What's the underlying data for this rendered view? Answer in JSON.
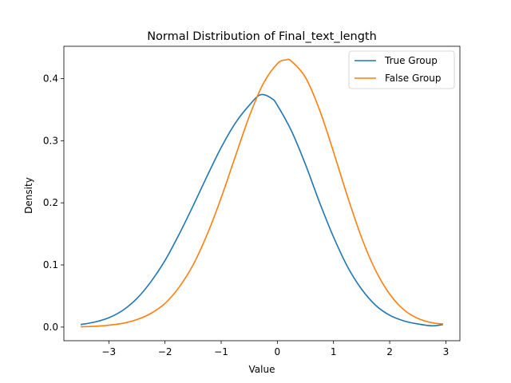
{
  "chart_data": {
    "type": "line",
    "title": "Normal Distribution of Final_text_length",
    "xlabel": "Value",
    "ylabel": "Density",
    "xlim": [
      -3.8,
      3.25
    ],
    "ylim": [
      -0.022,
      0.452
    ],
    "xticks": [
      -3,
      -2,
      -1,
      0,
      1,
      2,
      3
    ],
    "xtick_labels": [
      "−3",
      "−2",
      "−1",
      "0",
      "1",
      "2",
      "3"
    ],
    "yticks": [
      0.0,
      0.1,
      0.2,
      0.3,
      0.4
    ],
    "ytick_labels": [
      "0.0",
      "0.1",
      "0.2",
      "0.3",
      "0.4"
    ],
    "grid": false,
    "legend_position": "top-right",
    "series": [
      {
        "name": "True Group",
        "color": "#1f77b4",
        "x": [
          -3.5,
          -3.25,
          -3.0,
          -2.75,
          -2.5,
          -2.25,
          -2.0,
          -1.75,
          -1.5,
          -1.25,
          -1.0,
          -0.75,
          -0.5,
          -0.3,
          -0.1,
          0.0,
          0.25,
          0.5,
          0.75,
          1.0,
          1.25,
          1.5,
          1.75,
          2.0,
          2.25,
          2.5,
          2.75,
          2.95
        ],
        "y": [
          0.004,
          0.008,
          0.015,
          0.027,
          0.046,
          0.073,
          0.107,
          0.149,
          0.195,
          0.243,
          0.289,
          0.328,
          0.357,
          0.374,
          0.368,
          0.357,
          0.316,
          0.262,
          0.201,
          0.145,
          0.097,
          0.061,
          0.035,
          0.019,
          0.01,
          0.005,
          0.002,
          0.004
        ]
      },
      {
        "name": "False Group",
        "color": "#ff7f0e",
        "x": [
          -3.5,
          -3.25,
          -3.0,
          -2.75,
          -2.5,
          -2.25,
          -2.0,
          -1.75,
          -1.5,
          -1.25,
          -1.0,
          -0.75,
          -0.5,
          -0.25,
          0.0,
          0.15,
          0.25,
          0.5,
          0.75,
          1.0,
          1.25,
          1.5,
          1.75,
          2.0,
          2.25,
          2.5,
          2.75,
          2.95
        ],
        "y": [
          0.0005,
          0.0012,
          0.003,
          0.006,
          0.012,
          0.022,
          0.038,
          0.064,
          0.1,
          0.149,
          0.208,
          0.274,
          0.339,
          0.392,
          0.424,
          0.43,
          0.428,
          0.402,
          0.35,
          0.282,
          0.21,
          0.144,
          0.091,
          0.053,
          0.028,
          0.014,
          0.007,
          0.005
        ]
      }
    ]
  }
}
